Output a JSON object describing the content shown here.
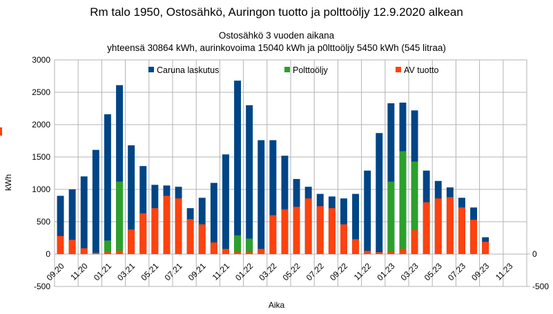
{
  "title": "Rm talo 1950, Ostosähkö, Auringon tuotto ja polttoöljy  12.9.2020 alkean",
  "subtitle_line1": "Ostosähkö 3 vuoden aikana",
  "subtitle_line2": "yhteensä 30864 kWh, aurinkovoima 15040 kWh ja p0lttoöljy 5450 kWh (545 litraa)",
  "chart_data": {
    "type": "bar",
    "stacked": true,
    "title": "Rm talo 1950, Ostosähkö, Auringon tuotto ja polttoöljy  12.9.2020 alkean",
    "xlabel": "Aika",
    "ylabel": "kWh",
    "ylim": [
      -500,
      3000
    ],
    "y_ticks": [
      "3000",
      "2500",
      "2000",
      "1500",
      "1000",
      "500",
      "0",
      "-500"
    ],
    "y2_ticks": [
      "0",
      "-500"
    ],
    "grid": true,
    "legend_position": "top",
    "x_tick_labels": [
      "09.20",
      "11.20",
      "01.21",
      "03.21",
      "05.21",
      "07.21",
      "09.21",
      "11.21",
      "01.22",
      "03.22",
      "05.22",
      "07.22",
      "09.22",
      "11.22",
      "01.23",
      "03.23",
      "05.23",
      "07.23",
      "09.23",
      "11.23"
    ],
    "series": [
      {
        "name": "Caruna laskutus",
        "color": "#004586",
        "values": [
          900,
          1000,
          1200,
          1610,
          2160,
          2610,
          1680,
          1360,
          1070,
          1060,
          1040,
          710,
          870,
          1100,
          1540,
          2680,
          2300,
          1760,
          1760,
          1520,
          1160,
          1040,
          930,
          890,
          860,
          930,
          1290,
          1870,
          2330,
          2340,
          2220,
          1290,
          1130,
          1030,
          870,
          720,
          260,
          0,
          0,
          0
        ]
      },
      {
        "name": "Polttoöljy",
        "color": "#2ca02c",
        "values": [
          0,
          0,
          0,
          0,
          210,
          1120,
          0,
          0,
          0,
          0,
          0,
          0,
          0,
          0,
          0,
          290,
          240,
          0,
          0,
          0,
          0,
          0,
          0,
          0,
          0,
          0,
          0,
          0,
          1120,
          1590,
          1430,
          0,
          0,
          0,
          0,
          0,
          0,
          0,
          0,
          0
        ]
      },
      {
        "name": "AV tuotto",
        "color": "#ff420e",
        "values": [
          280,
          220,
          90,
          20,
          30,
          50,
          380,
          630,
          710,
          900,
          860,
          540,
          460,
          180,
          80,
          30,
          30,
          80,
          600,
          690,
          730,
          860,
          740,
          710,
          460,
          230,
          50,
          30,
          40,
          80,
          370,
          800,
          860,
          880,
          720,
          530,
          190,
          0,
          0,
          0
        ]
      }
    ]
  }
}
